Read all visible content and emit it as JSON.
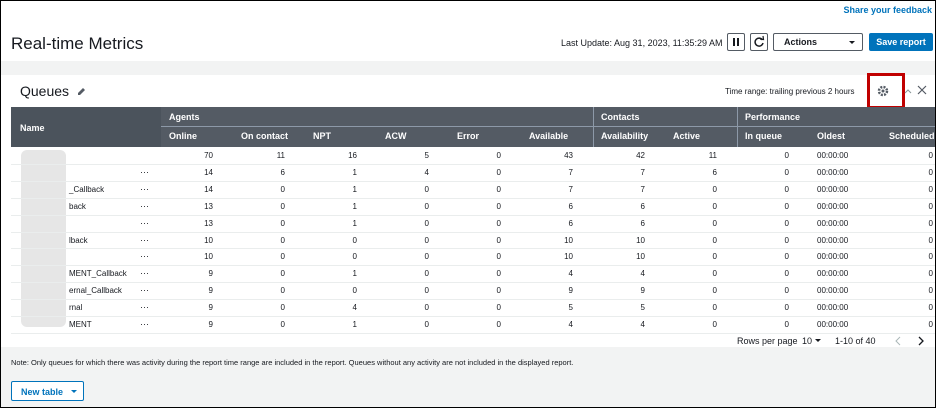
{
  "header": {
    "feedback": "Share your feedback",
    "title": "Real-time Metrics",
    "last_update": "Last Update: Aug 31, 2023, 11:35:29 AM",
    "actions": "Actions",
    "save": "Save report"
  },
  "panel": {
    "title": "Queues",
    "time_range": "Time range: trailing previous 2 hours"
  },
  "table": {
    "name_header": "Name",
    "groups": [
      {
        "label": "Agents",
        "span": 6
      },
      {
        "label": "Contacts",
        "span": 2
      },
      {
        "label": "Performance",
        "span": 3
      }
    ],
    "columns": [
      "Online",
      "On contact",
      "NPT",
      "ACW",
      "Error",
      "Available",
      "Availability",
      "Active",
      "In queue",
      "Oldest",
      "Scheduled"
    ],
    "row_menu": "···",
    "rows": [
      {
        "values": [
          70,
          11,
          16,
          5,
          0,
          43,
          42,
          11,
          0,
          "00:00:00",
          0
        ]
      },
      {
        "menu": true,
        "values": [
          14,
          6,
          1,
          4,
          0,
          7,
          7,
          6,
          0,
          "00:00:00",
          0
        ]
      },
      {
        "name": "_Callback",
        "menu": true,
        "values": [
          14,
          0,
          1,
          0,
          0,
          7,
          7,
          0,
          0,
          "00:00:00",
          0
        ]
      },
      {
        "name": "back",
        "menu": true,
        "values": [
          13,
          0,
          1,
          0,
          0,
          6,
          6,
          0,
          0,
          "00:00:00",
          0
        ]
      },
      {
        "menu": true,
        "values": [
          13,
          0,
          1,
          0,
          0,
          6,
          6,
          0,
          0,
          "00:00:00",
          0
        ]
      },
      {
        "name": "lback",
        "menu": true,
        "values": [
          10,
          0,
          0,
          0,
          0,
          10,
          10,
          0,
          0,
          "00:00:00",
          0
        ]
      },
      {
        "menu": true,
        "values": [
          10,
          0,
          0,
          0,
          0,
          10,
          10,
          0,
          0,
          "00:00:00",
          0
        ]
      },
      {
        "name": "MENT_Callback",
        "menu": true,
        "values": [
          9,
          0,
          1,
          0,
          0,
          4,
          4,
          0,
          0,
          "00:00:00",
          0
        ]
      },
      {
        "name": "ernal_Callback",
        "menu": true,
        "values": [
          9,
          0,
          0,
          0,
          0,
          9,
          9,
          0,
          0,
          "00:00:00",
          0
        ]
      },
      {
        "name": "rnal",
        "menu": true,
        "values": [
          9,
          0,
          4,
          0,
          0,
          5,
          5,
          0,
          0,
          "00:00:00",
          0
        ]
      },
      {
        "name": "MENT",
        "menu": true,
        "values": [
          9,
          0,
          1,
          0,
          0,
          4,
          4,
          0,
          0,
          "00:00:00",
          0
        ]
      }
    ]
  },
  "pagination": {
    "rows_per_page": "Rows per page",
    "page_size": 10,
    "range": "1-10 of 40"
  },
  "note": "Note: Only queues for which there was activity during the report time range are included in the report. Queues without any activity are not included in the displayed report.",
  "new_table": "New table"
}
